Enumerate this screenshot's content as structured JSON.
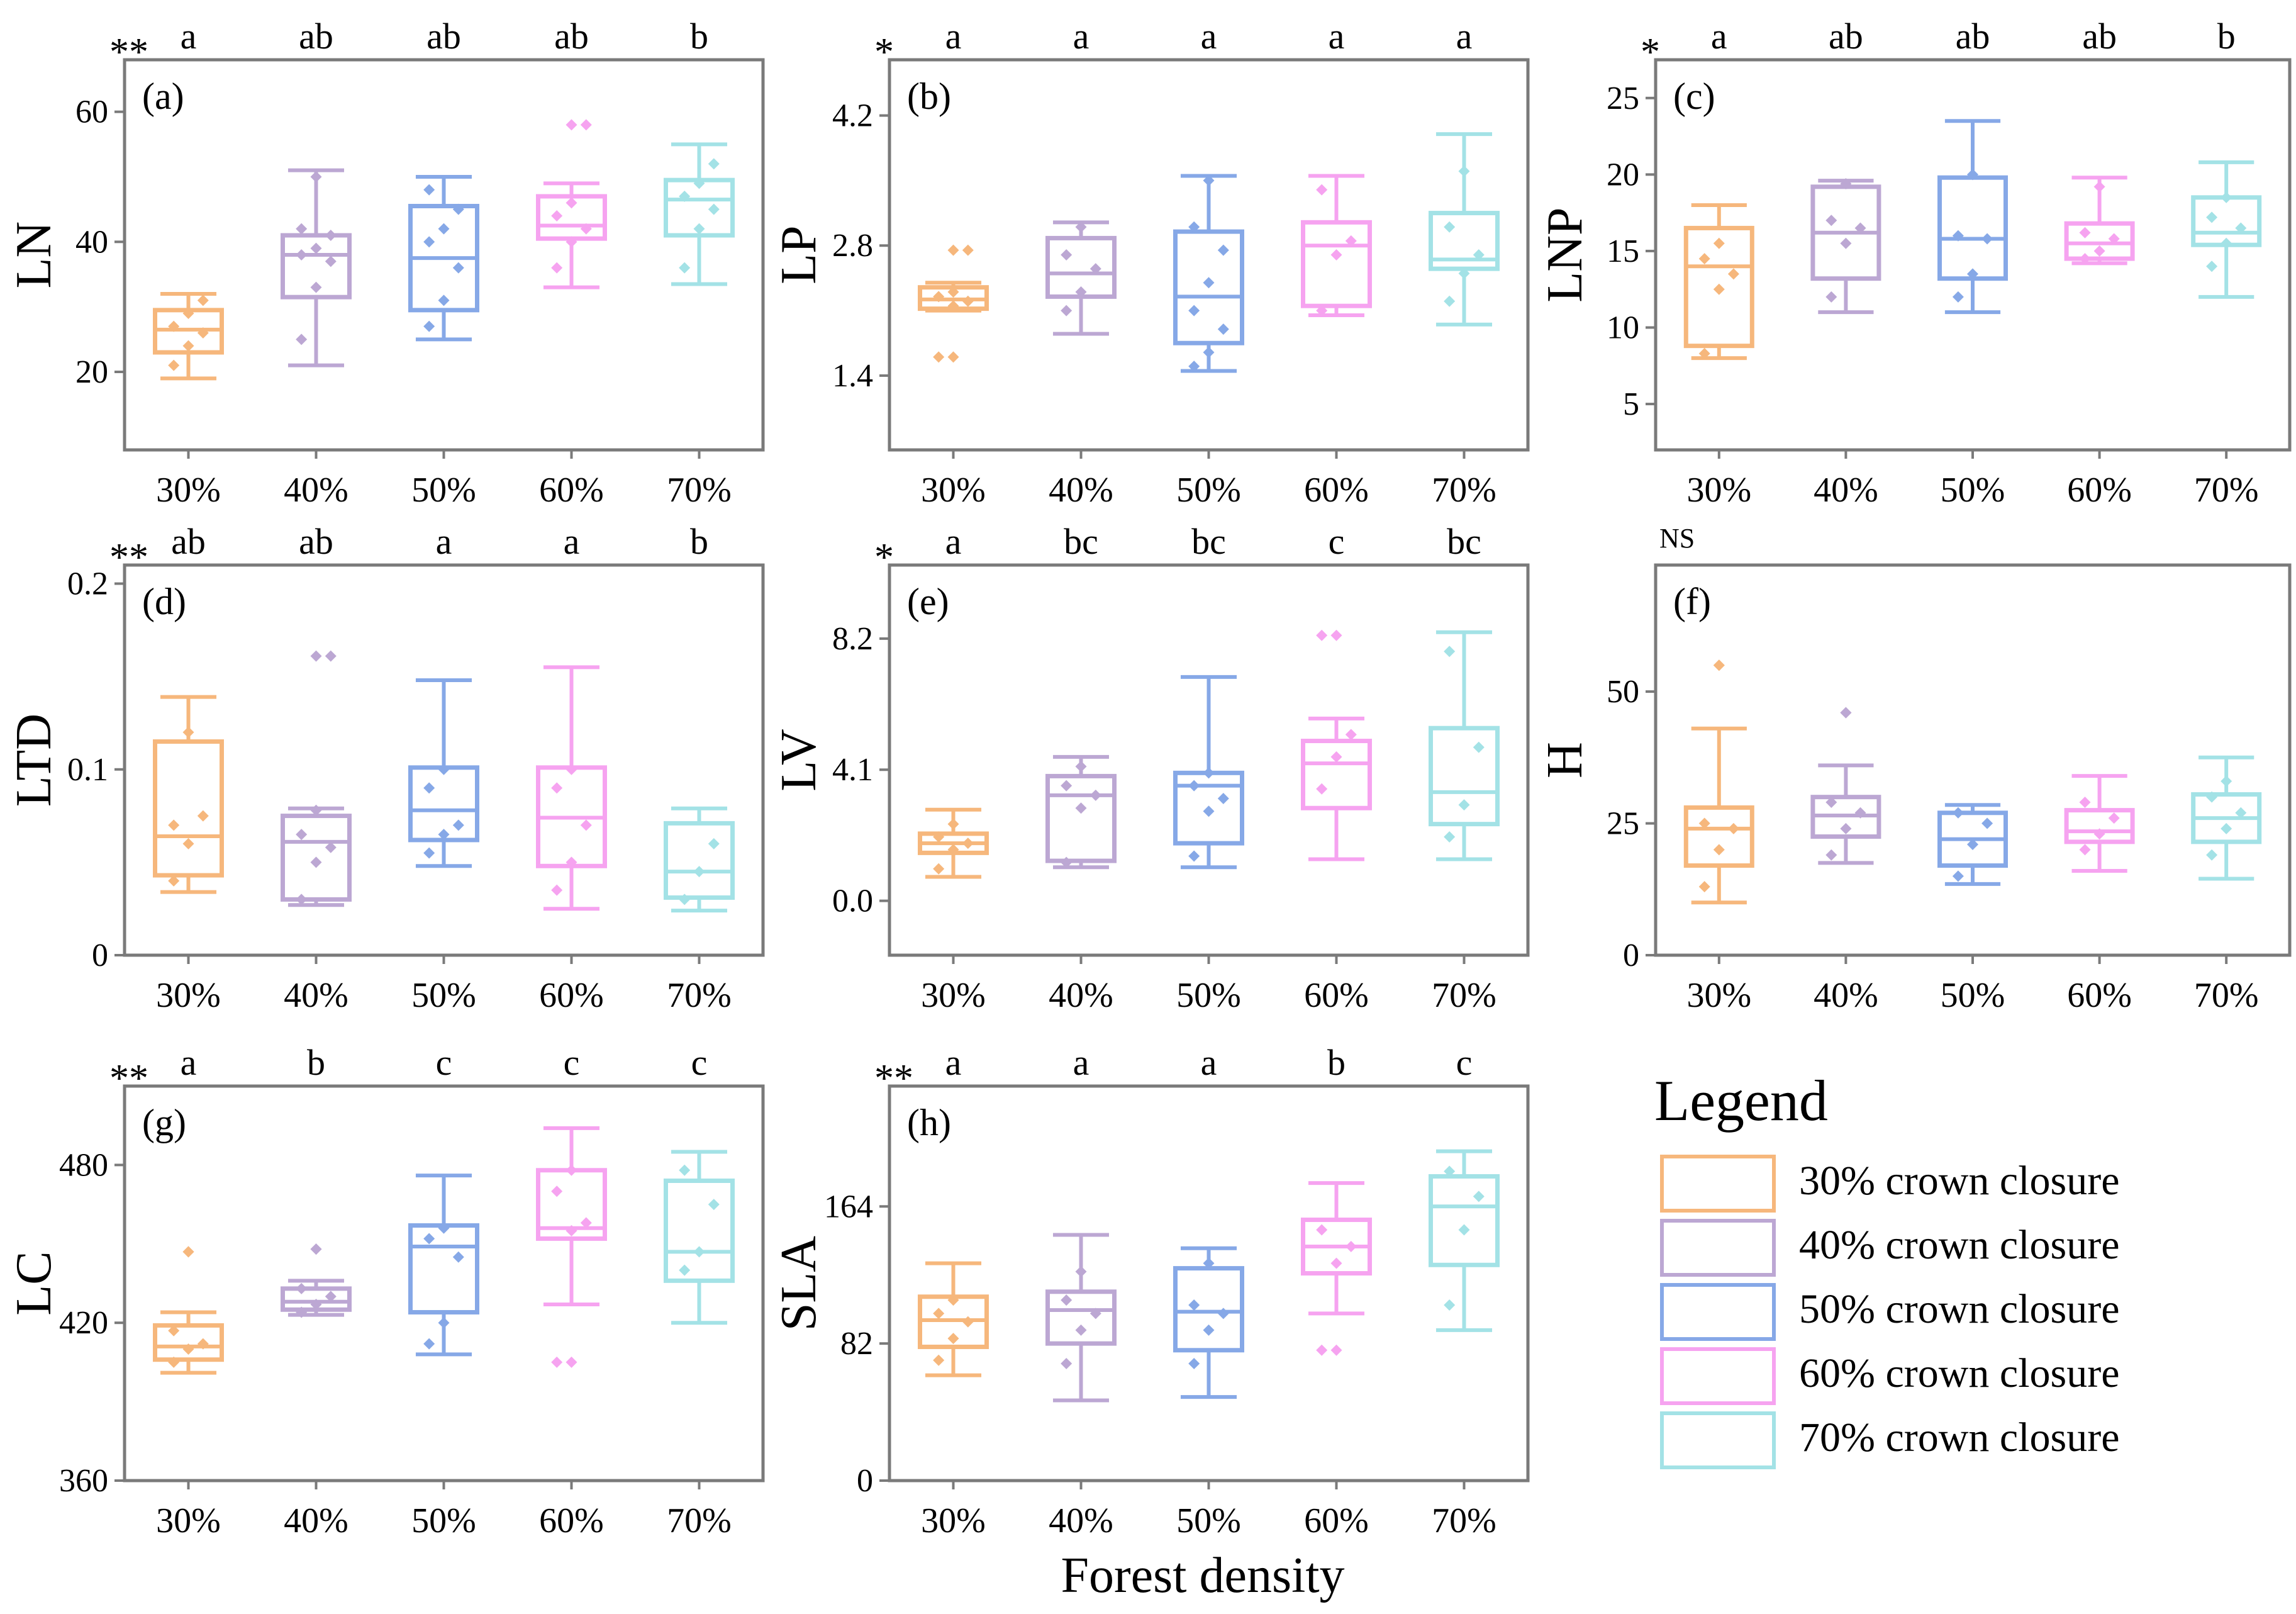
{
  "figure": {
    "xlabel": "Forest density",
    "legend": {
      "title": "Legend",
      "items": [
        "30% crown closure",
        "40% crown closure",
        "50% crown closure",
        "60% crown closure",
        "70% crown closure"
      ]
    },
    "colors": [
      "#F6B77C",
      "#BCA7D3",
      "#86A8E7",
      "#F6A3F0",
      "#A3E2E6"
    ]
  },
  "chart_data": [
    {
      "type": "box",
      "panel": "(a)",
      "ylabel": "LN",
      "significance": "**",
      "categories": [
        "30%",
        "40%",
        "50%",
        "60%",
        "70%"
      ],
      "ylim": [
        8,
        68
      ],
      "yticks": [
        20,
        40,
        60
      ],
      "letters": [
        "a",
        "ab",
        "ab",
        "ab",
        "b"
      ],
      "boxes": [
        {
          "min": 19,
          "q1": 23,
          "median": 26.5,
          "q3": 29.5,
          "max": 32,
          "points": [
            21,
            24,
            26,
            27,
            29,
            31
          ]
        },
        {
          "min": 21,
          "q1": 31.5,
          "median": 38,
          "q3": 41,
          "max": 51,
          "points": [
            25,
            33,
            37,
            38,
            39,
            41,
            42,
            50
          ]
        },
        {
          "min": 25,
          "q1": 29.5,
          "median": 37.5,
          "q3": 45.5,
          "max": 50,
          "points": [
            27,
            31,
            36,
            40,
            42,
            45,
            48
          ]
        },
        {
          "min": 33,
          "q1": 40.5,
          "median": 42.5,
          "q3": 47,
          "max": 49,
          "outliers": [
            58
          ],
          "points": [
            36,
            40,
            42,
            44,
            46,
            58
          ]
        },
        {
          "min": 33.5,
          "q1": 41,
          "median": 46.5,
          "q3": 49.5,
          "max": 55,
          "points": [
            36,
            42,
            45,
            47,
            49,
            52
          ]
        }
      ]
    },
    {
      "type": "box",
      "panel": "(b)",
      "ylabel": "LP",
      "significance": "*",
      "categories": [
        "30%",
        "40%",
        "50%",
        "60%",
        "70%"
      ],
      "ylim": [
        0.6,
        4.8
      ],
      "yticks": [
        1.4,
        2.8,
        4.2
      ],
      "letters": [
        "a",
        "a",
        "a",
        "a",
        "a"
      ],
      "boxes": [
        {
          "min": 2.1,
          "q1": 2.12,
          "median": 2.22,
          "q3": 2.35,
          "max": 2.4,
          "outliers": [
            1.6,
            2.75
          ],
          "points": [
            1.6,
            2.15,
            2.2,
            2.25,
            2.3,
            2.75
          ]
        },
        {
          "min": 1.85,
          "q1": 2.25,
          "median": 2.5,
          "q3": 2.88,
          "max": 3.05,
          "points": [
            2.1,
            2.3,
            2.55,
            2.7,
            3.0
          ]
        },
        {
          "min": 1.45,
          "q1": 1.75,
          "median": 2.25,
          "q3": 2.95,
          "max": 3.55,
          "points": [
            1.5,
            1.65,
            1.9,
            2.1,
            2.4,
            2.75,
            3.0,
            3.5
          ]
        },
        {
          "min": 2.05,
          "q1": 2.15,
          "median": 2.8,
          "q3": 3.05,
          "max": 3.55,
          "points": [
            2.1,
            2.7,
            2.85,
            3.4
          ]
        },
        {
          "min": 1.95,
          "q1": 2.55,
          "median": 2.65,
          "q3": 3.15,
          "max": 4.0,
          "points": [
            2.2,
            2.5,
            2.7,
            3.0,
            3.6
          ]
        }
      ]
    },
    {
      "type": "box",
      "panel": "(c)",
      "ylabel": "LNP",
      "significance": "*",
      "categories": [
        "30%",
        "40%",
        "50%",
        "60%",
        "70%"
      ],
      "ylim": [
        2,
        27.5
      ],
      "yticks": [
        5,
        10,
        15,
        20,
        25
      ],
      "letters": [
        "a",
        "ab",
        "ab",
        "ab",
        "b"
      ],
      "boxes": [
        {
          "min": 8,
          "q1": 8.8,
          "median": 14,
          "q3": 16.5,
          "max": 18,
          "points": [
            8.3,
            12.5,
            13.5,
            14.5,
            15.5
          ]
        },
        {
          "min": 11,
          "q1": 13.2,
          "median": 16.2,
          "q3": 19.2,
          "max": 19.6,
          "points": [
            12,
            15.5,
            16.5,
            17,
            19.4
          ]
        },
        {
          "min": 11,
          "q1": 13.2,
          "median": 15.8,
          "q3": 19.8,
          "max": 23.5,
          "points": [
            12,
            13.5,
            15.8,
            16,
            20
          ]
        },
        {
          "min": 14.2,
          "q1": 14.5,
          "median": 15.5,
          "q3": 16.8,
          "max": 19.8,
          "points": [
            14.5,
            15,
            15.8,
            16.2,
            19.2
          ]
        },
        {
          "min": 12,
          "q1": 15.4,
          "median": 16.2,
          "q3": 18.5,
          "max": 20.8,
          "points": [
            14,
            15.5,
            16.5,
            17.2,
            18.5
          ]
        }
      ]
    },
    {
      "type": "box",
      "panel": "(d)",
      "ylabel": "LTD",
      "significance": "**",
      "categories": [
        "30%",
        "40%",
        "50%",
        "60%",
        "70%"
      ],
      "ylim": [
        0,
        0.21
      ],
      "yticks": [
        0.0,
        0.1,
        0.2
      ],
      "letters": [
        "ab",
        "ab",
        "a",
        "a",
        "b"
      ],
      "boxes": [
        {
          "min": 0.034,
          "q1": 0.043,
          "median": 0.064,
          "q3": 0.115,
          "max": 0.139,
          "points": [
            0.04,
            0.06,
            0.075,
            0.07,
            0.12
          ]
        },
        {
          "min": 0.027,
          "q1": 0.03,
          "median": 0.061,
          "q3": 0.075,
          "max": 0.079,
          "outliers": [
            0.161
          ],
          "points": [
            0.03,
            0.05,
            0.058,
            0.065,
            0.078,
            0.161
          ]
        },
        {
          "min": 0.048,
          "q1": 0.062,
          "median": 0.078,
          "q3": 0.101,
          "max": 0.148,
          "points": [
            0.055,
            0.065,
            0.07,
            0.09,
            0.1
          ]
        },
        {
          "min": 0.025,
          "q1": 0.048,
          "median": 0.074,
          "q3": 0.101,
          "max": 0.155,
          "points": [
            0.035,
            0.05,
            0.07,
            0.09,
            0.1
          ]
        },
        {
          "min": 0.024,
          "q1": 0.031,
          "median": 0.045,
          "q3": 0.071,
          "max": 0.079,
          "points": [
            0.03,
            0.045,
            0.06
          ]
        }
      ]
    },
    {
      "type": "box",
      "panel": "(e)",
      "ylabel": "LV",
      "significance": "*",
      "categories": [
        "30%",
        "40%",
        "50%",
        "60%",
        "70%"
      ],
      "ylim": [
        -1.7,
        10.5
      ],
      "yticks": [
        0.0,
        4.1,
        8.2
      ],
      "ytick_labels": [
        "0.0",
        "4.1",
        "8.2"
      ],
      "letters": [
        "a",
        "bc",
        "bc",
        "c",
        "bc"
      ],
      "boxes": [
        {
          "min": 0.75,
          "q1": 1.5,
          "median": 1.8,
          "q3": 2.1,
          "max": 2.85,
          "points": [
            1.0,
            1.6,
            1.8,
            2.0,
            2.4
          ]
        },
        {
          "min": 1.05,
          "q1": 1.25,
          "median": 3.3,
          "q3": 3.9,
          "max": 4.5,
          "points": [
            1.2,
            2.9,
            3.3,
            3.6,
            4.2
          ]
        },
        {
          "min": 1.05,
          "q1": 1.8,
          "median": 3.6,
          "q3": 4.0,
          "max": 7.0,
          "points": [
            1.4,
            2.8,
            3.2,
            3.6,
            4.0
          ]
        },
        {
          "min": 1.3,
          "q1": 2.9,
          "median": 4.3,
          "q3": 5.0,
          "max": 5.7,
          "outliers": [
            8.3
          ],
          "points": [
            3.5,
            4.5,
            5.2,
            8.3
          ]
        },
        {
          "min": 1.3,
          "q1": 2.4,
          "median": 3.4,
          "q3": 5.4,
          "max": 8.4,
          "points": [
            2.0,
            3.0,
            4.8,
            7.8
          ]
        }
      ]
    },
    {
      "type": "box",
      "panel": "(f)",
      "ylabel": "H",
      "significance": "NS",
      "categories": [
        "30%",
        "40%",
        "50%",
        "60%",
        "70%"
      ],
      "ylim": [
        0,
        74
      ],
      "yticks": [
        0,
        25,
        50
      ],
      "letters": [
        "",
        "",
        "",
        "",
        ""
      ],
      "boxes": [
        {
          "min": 10,
          "q1": 17,
          "median": 24,
          "q3": 28,
          "max": 43,
          "outliers": [
            55
          ],
          "points": [
            13,
            20,
            24,
            25,
            55
          ]
        },
        {
          "min": 17.5,
          "q1": 22.5,
          "median": 26.5,
          "q3": 30,
          "max": 36,
          "outliers": [
            46
          ],
          "points": [
            19,
            24,
            27,
            29,
            46
          ]
        },
        {
          "min": 13.5,
          "q1": 17,
          "median": 22,
          "q3": 27,
          "max": 28.5,
          "points": [
            15,
            21,
            25,
            27
          ]
        },
        {
          "min": 16,
          "q1": 21.5,
          "median": 23.5,
          "q3": 27.5,
          "max": 34,
          "points": [
            20,
            23,
            26,
            29
          ]
        },
        {
          "min": 14.5,
          "q1": 21.5,
          "median": 26,
          "q3": 30.5,
          "max": 37.5,
          "points": [
            19,
            24,
            27,
            30,
            33
          ]
        }
      ]
    },
    {
      "type": "box",
      "panel": "(g)",
      "ylabel": "LC",
      "significance": "**",
      "categories": [
        "30%",
        "40%",
        "50%",
        "60%",
        "70%"
      ],
      "ylim": [
        360,
        510
      ],
      "yticks": [
        360,
        420,
        480
      ],
      "letters": [
        "a",
        "b",
        "c",
        "c",
        "c"
      ],
      "boxes": [
        {
          "min": 401,
          "q1": 406,
          "median": 411,
          "q3": 419,
          "max": 424,
          "outliers": [
            447
          ],
          "points": [
            405,
            410,
            412,
            417,
            447
          ]
        },
        {
          "min": 423,
          "q1": 425,
          "median": 428,
          "q3": 433,
          "max": 436,
          "outliers": [
            448
          ],
          "points": [
            424,
            427,
            430,
            433,
            448
          ]
        },
        {
          "min": 408,
          "q1": 424,
          "median": 449,
          "q3": 457,
          "max": 476,
          "points": [
            412,
            420,
            445,
            452,
            456
          ]
        },
        {
          "min": 427,
          "q1": 452,
          "median": 456,
          "q3": 478,
          "max": 494,
          "outliers": [
            405
          ],
          "points": [
            405,
            455,
            458,
            470,
            478
          ]
        },
        {
          "min": 420,
          "q1": 436,
          "median": 447,
          "q3": 474,
          "max": 485,
          "points": [
            440,
            447,
            465,
            478
          ]
        }
      ]
    },
    {
      "type": "box",
      "panel": "(h)",
      "ylabel": "SLA",
      "significance": "**",
      "categories": [
        "30%",
        "40%",
        "50%",
        "60%",
        "70%"
      ],
      "ylim": [
        0,
        236
      ],
      "yticks": [
        0,
        82,
        164
      ],
      "letters": [
        "a",
        "a",
        "a",
        "b",
        "c"
      ],
      "boxes": [
        {
          "min": 63,
          "q1": 80,
          "median": 96,
          "q3": 110,
          "max": 130,
          "points": [
            72,
            85,
            95,
            100,
            108
          ]
        },
        {
          "min": 48,
          "q1": 82,
          "median": 102,
          "q3": 113,
          "max": 147,
          "points": [
            70,
            90,
            100,
            108,
            125
          ]
        },
        {
          "min": 50,
          "q1": 78,
          "median": 101,
          "q3": 127,
          "max": 139,
          "points": [
            70,
            90,
            100,
            105,
            130
          ]
        },
        {
          "min": 100,
          "q1": 124,
          "median": 140,
          "q3": 156,
          "max": 178,
          "outliers": [
            78
          ],
          "points": [
            78,
            130,
            140,
            150
          ]
        },
        {
          "min": 90,
          "q1": 129,
          "median": 164,
          "q3": 182,
          "max": 197,
          "points": [
            105,
            150,
            170,
            185
          ]
        }
      ]
    }
  ]
}
